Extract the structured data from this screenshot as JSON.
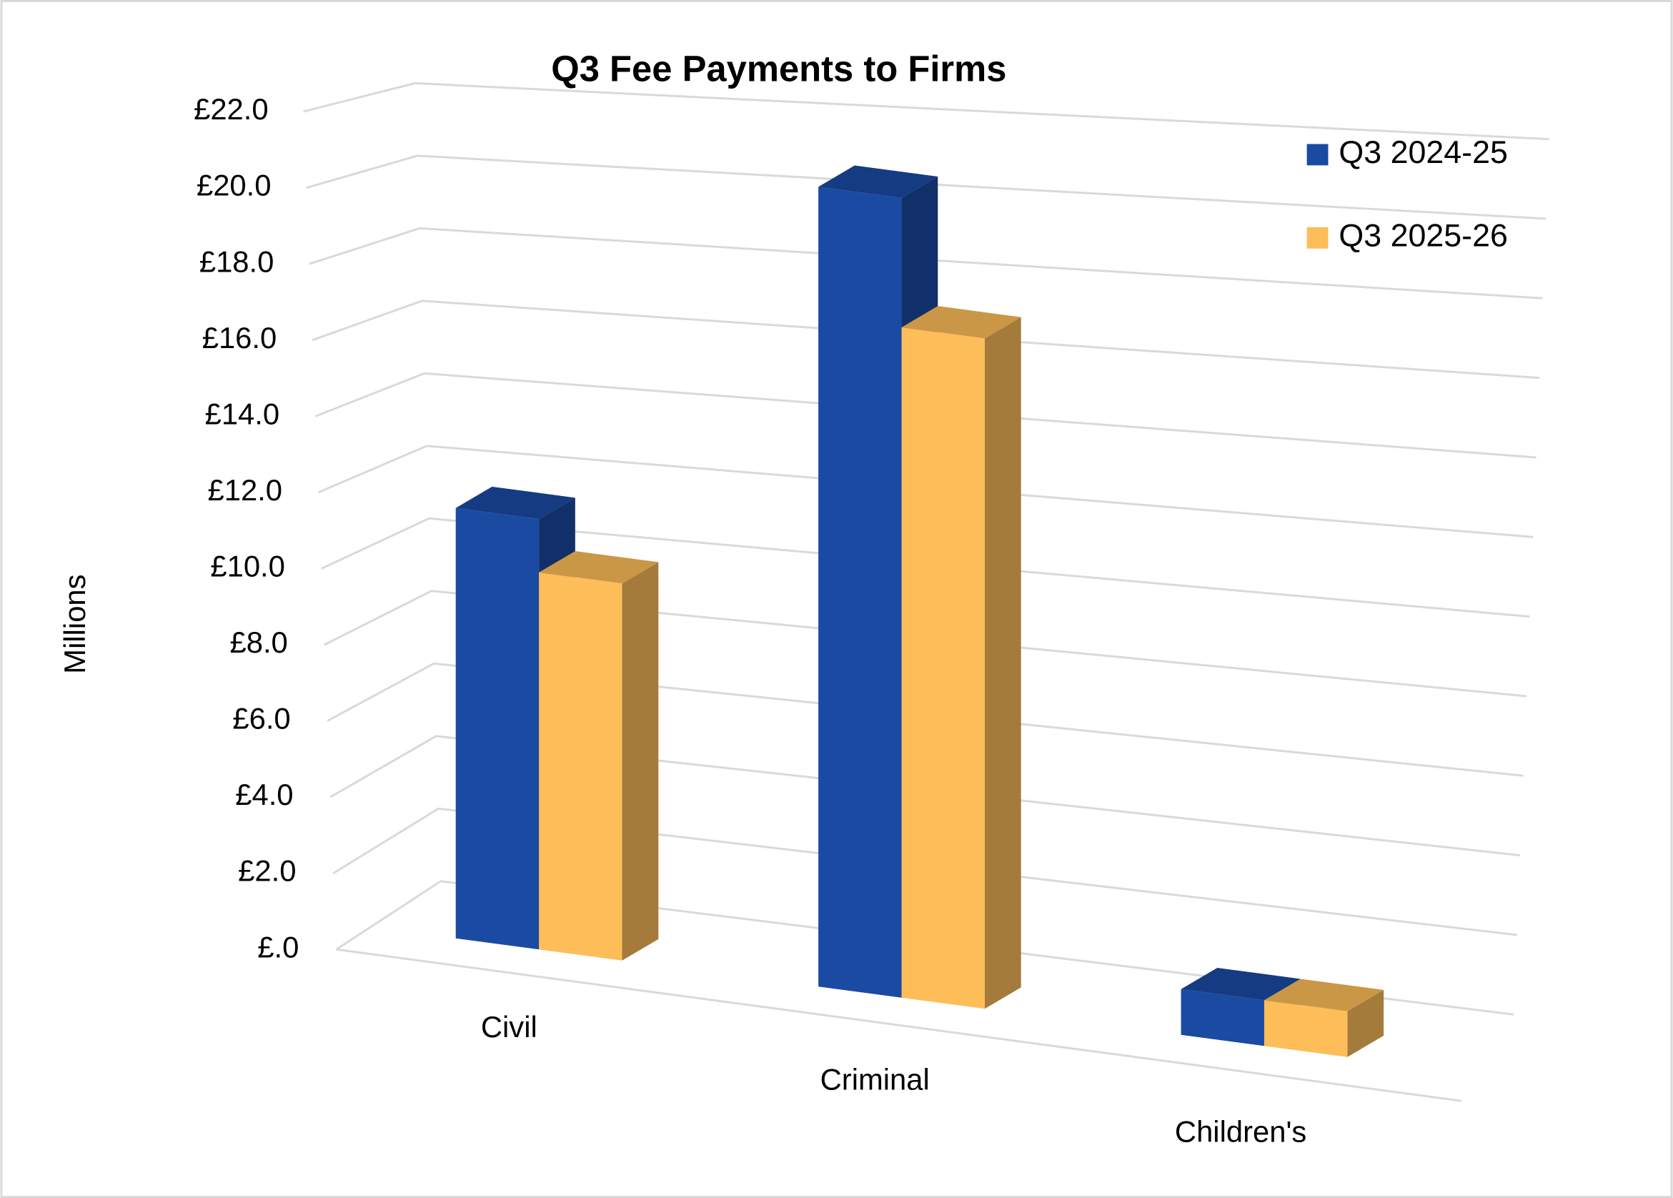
{
  "chart_data": {
    "type": "bar3d",
    "title": "Q3 Fee Payments to Firms",
    "y_label": "Millions",
    "categories": [
      "Civil",
      "Criminal",
      "Children's"
    ],
    "series": [
      {
        "name": "Q3 2024-25",
        "color": "#1a4aa2",
        "values": [
          11.3,
          21.0,
          1.2
        ]
      },
      {
        "name": "Q3 2025-26",
        "color": "#fdbd59",
        "values": [
          9.9,
          17.6,
          1.2
        ]
      }
    ],
    "ylim": [
      0,
      22
    ],
    "yticks": [
      {
        "value": 0,
        "label": "£.0"
      },
      {
        "value": 2,
        "label": "£2.0"
      },
      {
        "value": 4,
        "label": "£4.0"
      },
      {
        "value": 6,
        "label": "£6.0"
      },
      {
        "value": 8,
        "label": "£8.0"
      },
      {
        "value": 10,
        "label": "£10.0"
      },
      {
        "value": 12,
        "label": "£12.0"
      },
      {
        "value": 14,
        "label": "£14.0"
      },
      {
        "value": 16,
        "label": "£16.0"
      },
      {
        "value": 18,
        "label": "£18.0"
      },
      {
        "value": 20,
        "label": "£20.0"
      },
      {
        "value": 22,
        "label": "£22.0"
      }
    ],
    "grid": true,
    "legend": "top-right"
  }
}
